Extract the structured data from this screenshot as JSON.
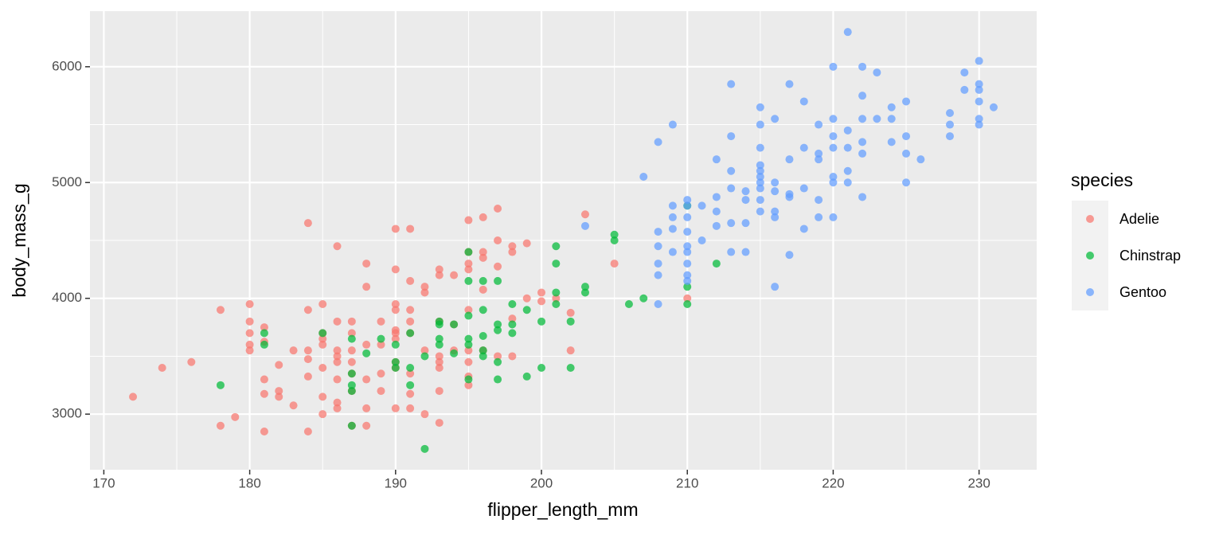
{
  "chart_data": {
    "type": "scatter",
    "x_label": "flipper_length_mm",
    "y_label": "body_mass_g",
    "legend_title": "species",
    "xlim": [
      169.05,
      233.95
    ],
    "ylim": [
      2520,
      6480
    ],
    "xticks": [
      170,
      180,
      190,
      200,
      210,
      220,
      230
    ],
    "yticks": [
      3000,
      4000,
      5000,
      6000
    ],
    "x_minor_ticks": [
      175,
      185,
      195,
      205,
      215,
      225
    ],
    "y_minor_ticks": [
      3500,
      4500,
      5500
    ],
    "grid": true,
    "legend": "right",
    "series": [
      {
        "name": "Adelie",
        "color": "#F8766D",
        "x": [
          172,
          174,
          176,
          178,
          178,
          179,
          180,
          180,
          180,
          180,
          180,
          181,
          181,
          181,
          181,
          181,
          182,
          182,
          182,
          183,
          183,
          184,
          184,
          184,
          184,
          184,
          184,
          185,
          185,
          185,
          185,
          185,
          185,
          185,
          186,
          186,
          186,
          186,
          186,
          186,
          186,
          186,
          187,
          187,
          187,
          187,
          187,
          187,
          187,
          188,
          188,
          188,
          188,
          188,
          188,
          189,
          189,
          189,
          189,
          190,
          190,
          190,
          190,
          190,
          190,
          190,
          190,
          190,
          190,
          191,
          191,
          191,
          191,
          191,
          191,
          191,
          191,
          192,
          192,
          192,
          192,
          193,
          193,
          193,
          193,
          193,
          193,
          193,
          193,
          194,
          194,
          194,
          195,
          195,
          195,
          195,
          195,
          195,
          195,
          195,
          195,
          196,
          196,
          196,
          196,
          196,
          197,
          197,
          197,
          197,
          198,
          198,
          198,
          198,
          199,
          199,
          200,
          200,
          201,
          202,
          202,
          203,
          205,
          210
        ],
        "values": [
          3150,
          3400,
          3450,
          3900,
          2900,
          2975,
          3950,
          3800,
          3700,
          3600,
          3550,
          3750,
          3625,
          3300,
          3175,
          2850,
          3200,
          3150,
          3425,
          3550,
          3075,
          4650,
          3900,
          3550,
          3475,
          3325,
          2850,
          3950,
          3700,
          3650,
          3600,
          3400,
          3150,
          3000,
          4450,
          3800,
          3550,
          3500,
          3450,
          3300,
          3100,
          3050,
          3800,
          3700,
          3550,
          3450,
          3350,
          3200,
          2900,
          4300,
          4100,
          3600,
          3300,
          3050,
          2900,
          3800,
          3600,
          3350,
          3200,
          4600,
          4250,
          3950,
          3900,
          3725,
          3700,
          3650,
          3450,
          3400,
          3050,
          4600,
          4150,
          3900,
          3800,
          3700,
          3350,
          3175,
          3050,
          4100,
          4050,
          3000,
          3550,
          4250,
          4200,
          3800,
          3500,
          3450,
          3400,
          3200,
          2925,
          4200,
          3775,
          3550,
          4675,
          4400,
          4300,
          4250,
          3900,
          3550,
          3450,
          3325,
          3250,
          4700,
          4400,
          4350,
          4075,
          3550,
          4775,
          4500,
          4275,
          3500,
          4450,
          4400,
          3500,
          3825,
          4475,
          4000,
          4050,
          3975,
          4000,
          3875,
          3550,
          4725,
          4300,
          4000
        ]
      },
      {
        "name": "Chinstrap",
        "color": "#00BA38",
        "x": [
          178,
          181,
          181,
          185,
          187,
          187,
          187,
          187,
          187,
          188,
          189,
          190,
          190,
          190,
          191,
          191,
          191,
          192,
          192,
          193,
          193,
          193,
          193,
          194,
          194,
          195,
          195,
          195,
          195,
          195,
          195,
          196,
          196,
          196,
          196,
          196,
          197,
          197,
          197,
          197,
          197,
          198,
          198,
          198,
          199,
          199,
          200,
          200,
          201,
          201,
          201,
          201,
          202,
          202,
          203,
          203,
          205,
          205,
          206,
          207,
          210,
          210,
          210,
          212
        ],
        "values": [
          3250,
          3700,
          3600,
          3700,
          3650,
          3350,
          3250,
          3200,
          2900,
          3525,
          3650,
          3600,
          3450,
          3400,
          3700,
          3400,
          3250,
          3500,
          2700,
          3800,
          3775,
          3650,
          3600,
          3525,
          3775,
          4400,
          4150,
          3850,
          3650,
          3600,
          3300,
          4150,
          3900,
          3675,
          3550,
          3500,
          4150,
          3775,
          3725,
          3450,
          3300,
          3950,
          3775,
          3700,
          3900,
          3325,
          3800,
          3400,
          4450,
          4300,
          4050,
          3950,
          3800,
          3400,
          4100,
          4050,
          4550,
          4500,
          3950,
          4000,
          4800,
          4100,
          3950,
          4300
        ]
      },
      {
        "name": "Gentoo",
        "color": "#619CFF",
        "x": [
          203,
          207,
          208,
          208,
          208,
          208,
          208,
          208,
          209,
          209,
          209,
          209,
          209,
          210,
          210,
          210,
          210,
          210,
          210,
          210,
          210,
          210,
          211,
          211,
          212,
          212,
          212,
          212,
          213,
          213,
          213,
          213,
          213,
          213,
          214,
          214,
          214,
          214,
          215,
          215,
          215,
          215,
          215,
          215,
          215,
          215,
          215,
          215,
          216,
          216,
          216,
          216,
          216,
          216,
          217,
          217,
          217,
          217,
          217,
          218,
          218,
          218,
          218,
          219,
          219,
          219,
          219,
          219,
          220,
          220,
          220,
          220,
          220,
          220,
          220,
          221,
          221,
          221,
          221,
          221,
          222,
          222,
          222,
          222,
          222,
          222,
          223,
          223,
          224,
          224,
          224,
          225,
          225,
          225,
          225,
          226,
          228,
          228,
          228,
          229,
          229,
          230,
          230,
          230,
          230,
          230,
          230,
          231
        ],
        "values": [
          4625,
          5050,
          5350,
          4575,
          4450,
          4300,
          4200,
          3950,
          5500,
          4800,
          4700,
          4600,
          4400,
          4850,
          4800,
          4700,
          4575,
          4450,
          4400,
          4300,
          4200,
          4150,
          4800,
          4500,
          4875,
          4750,
          4625,
          5200,
          5850,
          5400,
          5100,
          4950,
          4650,
          4400,
          4925,
          4850,
          4650,
          4400,
          5650,
          5500,
          5300,
          5150,
          5100,
          5050,
          5000,
          4950,
          4850,
          4750,
          5550,
          5000,
          4925,
          4750,
          4700,
          4100,
          5850,
          5200,
          4900,
          4875,
          4375,
          5700,
          5300,
          4950,
          4600,
          5500,
          5250,
          5200,
          4850,
          4700,
          6000,
          5550,
          5400,
          5300,
          5050,
          5000,
          4700,
          6300,
          5450,
          5300,
          5100,
          5000,
          6000,
          5750,
          5550,
          5350,
          5250,
          4875,
          5950,
          5550,
          5650,
          5550,
          5350,
          5700,
          5400,
          5250,
          5000,
          5200,
          5600,
          5500,
          5400,
          5950,
          5800,
          6050,
          5850,
          5800,
          5700,
          5550,
          5500,
          5650
        ]
      }
    ]
  }
}
